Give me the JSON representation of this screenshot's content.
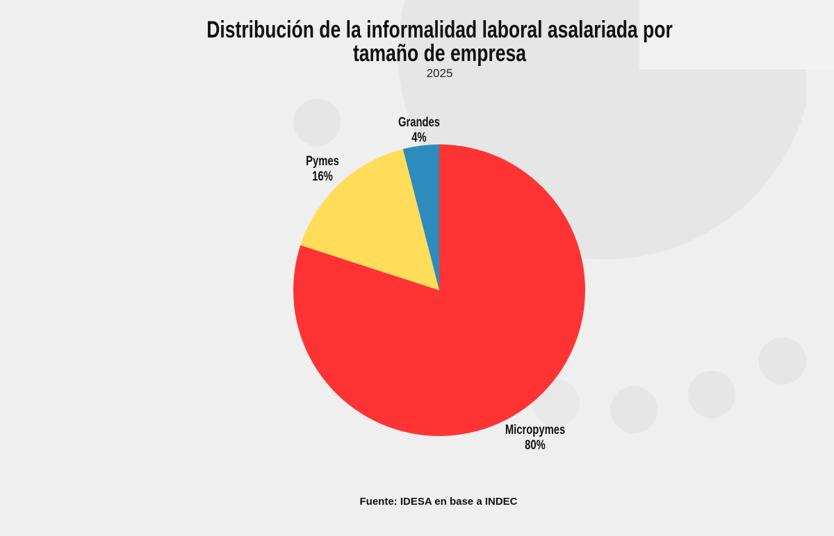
{
  "title_line1": "Distribución de la informalidad laboral asalariada por",
  "title_line2": "tamaño de empresa",
  "subtitle": "2025",
  "source": "Fuente: IDESA en base a INDEC",
  "chart_data": {
    "type": "pie",
    "title": "Distribución de la informalidad laboral asalariada por tamaño de empresa",
    "subtitle": "2025",
    "start_angle": "12 o'clock, clockwise",
    "slices": [
      {
        "label": "Micropymes",
        "value": 80,
        "display": "80%",
        "color": "#FF3333"
      },
      {
        "label": "Pymes",
        "value": 16,
        "display": "16%",
        "color": "#FFDD5A"
      },
      {
        "label": "Grandes",
        "value": 4,
        "display": "4%",
        "color": "#2E8BBE"
      }
    ],
    "legend": "none"
  }
}
